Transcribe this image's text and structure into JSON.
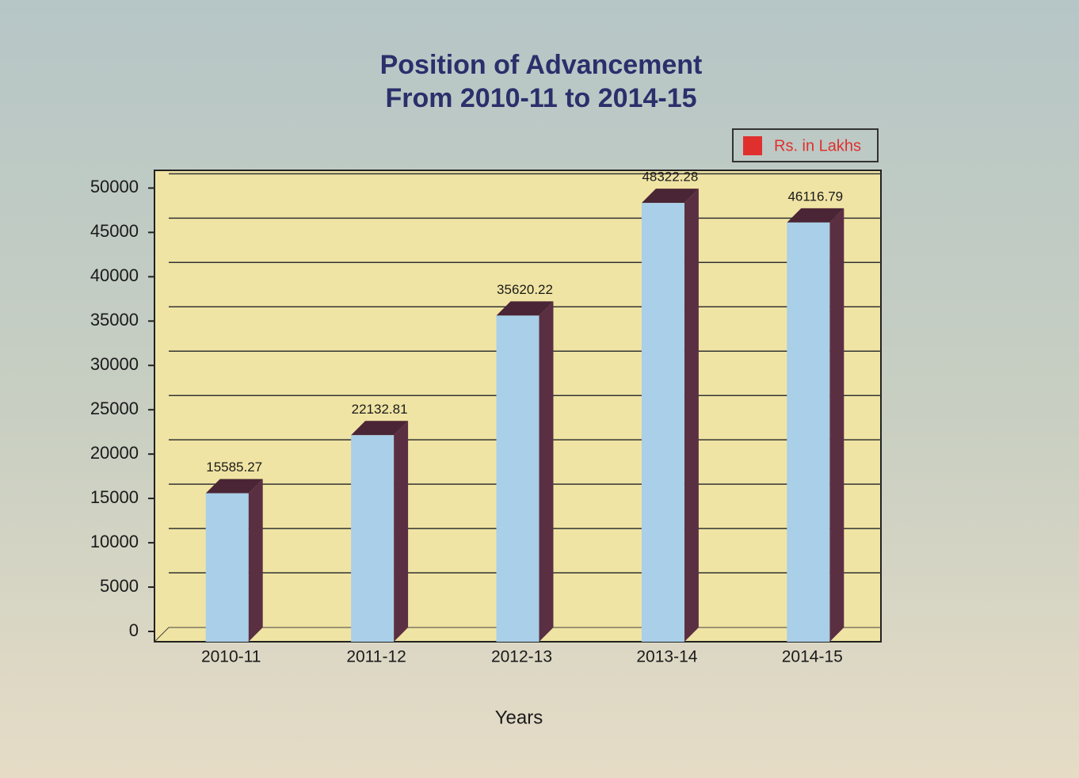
{
  "chart_data": {
    "type": "bar3d",
    "title": [
      "Position of Advancement",
      "From 2010-11 to 2014-15"
    ],
    "x_label": "Years",
    "categories": [
      "2010-11",
      "2011-12",
      "2012-13",
      "2013-14",
      "2014-15"
    ],
    "series": [
      {
        "name": "Rs. in Lakhs",
        "color": "#a9cfe9",
        "legend_color": "#e0302e",
        "values": [
          15585.27,
          22132.81,
          35620.22,
          48322.28,
          46116.79
        ]
      }
    ],
    "ylim": [
      0,
      52000
    ],
    "yticks": [
      0,
      5000,
      10000,
      15000,
      20000,
      25000,
      30000,
      35000,
      40000,
      45000,
      50000
    ],
    "grid": true
  }
}
